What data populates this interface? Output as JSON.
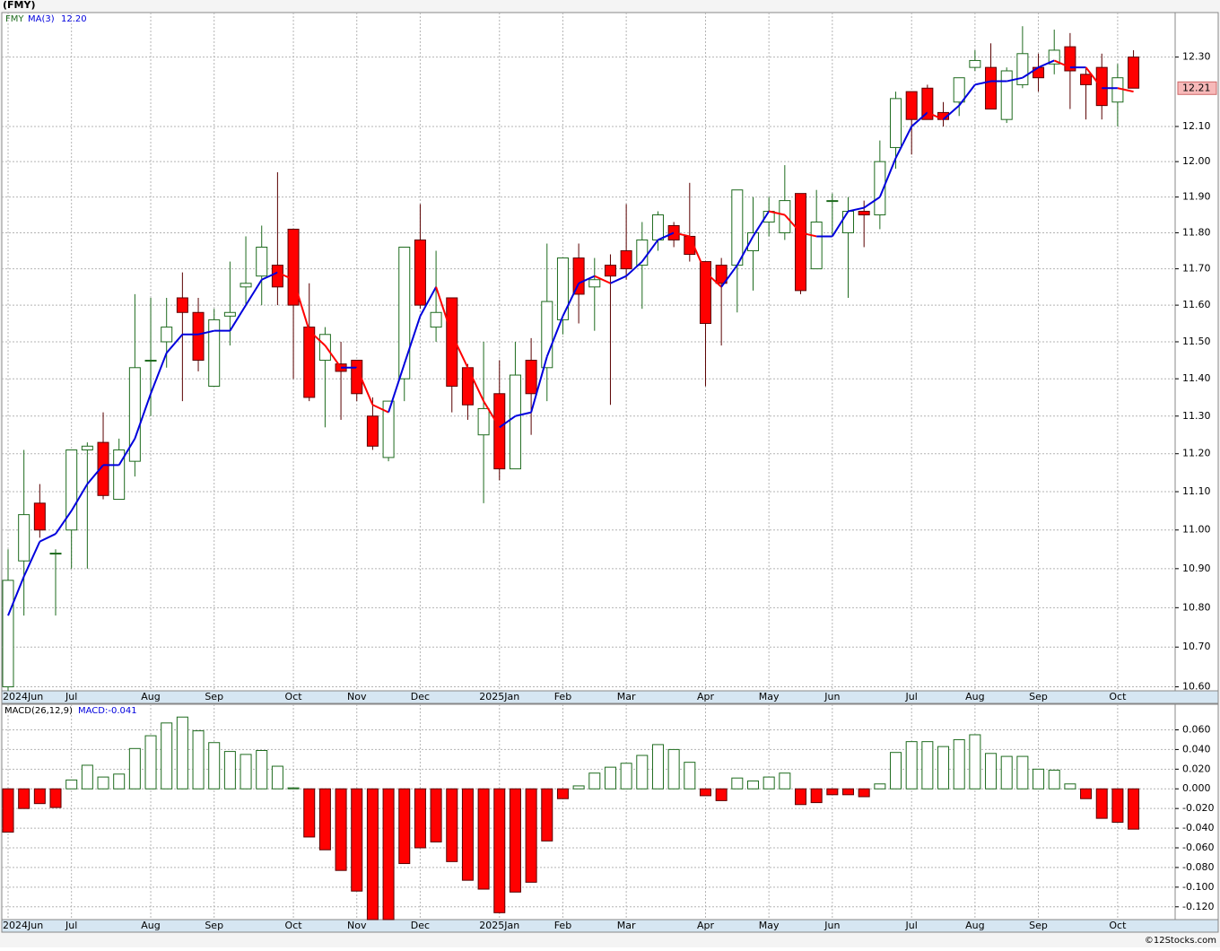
{
  "chart_data": [
    {
      "type": "candlestick",
      "title": "(FMY)",
      "symbol": "FMY",
      "categories": [
        "2024Jun",
        null,
        null,
        null,
        "Jul",
        null,
        null,
        null,
        null,
        "Aug",
        null,
        null,
        null,
        "Sep",
        null,
        null,
        null,
        null,
        "Oct",
        null,
        null,
        null,
        "Nov",
        null,
        null,
        null,
        "Dec",
        null,
        null,
        null,
        null,
        "2025Jan",
        null,
        null,
        null,
        "Feb",
        null,
        null,
        null,
        "Mar",
        null,
        null,
        null,
        null,
        "Apr",
        null,
        null,
        null,
        "May",
        null,
        null,
        null,
        "Jun",
        null,
        null,
        null,
        null,
        "Jul",
        null,
        null,
        null,
        "Aug",
        null,
        null,
        null,
        "Sep",
        null,
        null,
        null,
        null,
        "Oct",
        null
      ],
      "open": [
        10.6,
        10.92,
        11.07,
        10.94,
        11.0,
        11.21,
        11.23,
        11.08,
        11.18,
        11.45,
        11.5,
        11.62,
        11.58,
        11.38,
        11.57,
        11.65,
        11.68,
        11.71,
        11.81,
        11.54,
        11.45,
        11.44,
        11.45,
        11.3,
        11.19,
        11.4,
        11.78,
        11.54,
        11.62,
        11.43,
        11.25,
        11.36,
        11.16,
        11.45,
        11.43,
        11.56,
        11.73,
        11.65,
        11.71,
        11.75,
        11.71,
        11.78,
        11.82,
        11.79,
        11.72,
        11.71,
        11.71,
        11.75,
        11.83,
        11.8,
        11.91,
        11.7,
        11.89,
        11.8,
        11.86,
        11.85,
        12.04,
        12.2,
        12.21,
        12.14,
        12.17,
        12.27,
        12.27,
        12.12,
        12.22,
        12.27,
        12.28,
        12.33,
        12.25,
        12.27,
        12.17,
        12.3
      ],
      "high": [
        10.95,
        11.21,
        11.12,
        10.95,
        11.21,
        11.23,
        11.31,
        11.24,
        11.63,
        11.62,
        11.62,
        11.69,
        11.62,
        11.59,
        11.72,
        11.79,
        11.82,
        11.97,
        11.81,
        11.66,
        11.54,
        11.5,
        11.45,
        11.35,
        11.34,
        11.76,
        11.88,
        11.75,
        11.62,
        11.44,
        11.5,
        11.45,
        11.5,
        11.51,
        11.77,
        11.73,
        11.77,
        11.73,
        11.74,
        11.88,
        11.83,
        11.86,
        11.83,
        11.94,
        11.72,
        11.73,
        11.92,
        11.9,
        11.9,
        11.99,
        11.91,
        11.92,
        11.91,
        11.9,
        11.89,
        12.06,
        12.2,
        12.2,
        12.22,
        12.17,
        12.24,
        12.32,
        12.34,
        12.27,
        12.39,
        12.31,
        12.38,
        12.37,
        12.27,
        12.31,
        12.28,
        12.32
      ],
      "low": [
        10.59,
        10.78,
        10.98,
        10.78,
        10.9,
        10.9,
        11.08,
        11.08,
        11.14,
        11.3,
        11.43,
        11.34,
        11.42,
        11.38,
        11.49,
        11.6,
        11.6,
        11.6,
        11.4,
        11.34,
        11.27,
        11.29,
        11.34,
        11.21,
        11.18,
        11.34,
        11.59,
        11.5,
        11.31,
        11.29,
        11.07,
        11.13,
        11.16,
        11.25,
        11.34,
        11.52,
        11.55,
        11.53,
        11.33,
        11.67,
        11.59,
        11.75,
        11.76,
        11.72,
        11.38,
        11.49,
        11.58,
        11.64,
        11.79,
        11.78,
        11.63,
        11.7,
        11.79,
        11.62,
        11.76,
        11.81,
        11.98,
        12.02,
        12.12,
        12.1,
        12.13,
        12.26,
        12.15,
        12.11,
        12.21,
        12.2,
        12.25,
        12.15,
        12.12,
        12.12,
        12.1,
        12.21
      ],
      "close": [
        10.87,
        11.04,
        11.0,
        10.94,
        11.21,
        11.22,
        11.09,
        11.21,
        11.43,
        11.45,
        11.54,
        11.58,
        11.45,
        11.56,
        11.58,
        11.66,
        11.76,
        11.65,
        11.6,
        11.35,
        11.52,
        11.42,
        11.36,
        11.22,
        11.34,
        11.76,
        11.6,
        11.58,
        11.38,
        11.33,
        11.32,
        11.16,
        11.41,
        11.36,
        11.61,
        11.73,
        11.63,
        11.67,
        11.68,
        11.7,
        11.78,
        11.85,
        11.78,
        11.74,
        11.55,
        11.66,
        11.92,
        11.8,
        11.86,
        11.89,
        11.64,
        11.83,
        11.89,
        11.86,
        11.85,
        12.0,
        12.18,
        12.12,
        12.12,
        12.12,
        12.24,
        12.29,
        12.15,
        12.26,
        12.31,
        12.24,
        12.32,
        12.26,
        12.22,
        12.16,
        12.24,
        12.21
      ],
      "up_color": "#ffffff",
      "up_stroke": "#1e6b1e",
      "down_color": "#ff0000",
      "down_stroke": "#5a0000",
      "series": [
        {
          "name": "MA(3)",
          "value_label": "12.20",
          "color": "#0000dd",
          "down_color": "#ff0000",
          "values": [
            10.78,
            10.88,
            10.97,
            10.99,
            11.05,
            11.12,
            11.17,
            11.17,
            11.24,
            11.36,
            11.47,
            11.52,
            11.52,
            11.53,
            11.53,
            11.6,
            11.67,
            11.69,
            11.67,
            11.53,
            11.49,
            11.43,
            11.43,
            11.33,
            11.31,
            11.44,
            11.57,
            11.65,
            11.52,
            11.43,
            11.34,
            11.27,
            11.3,
            11.31,
            11.46,
            11.57,
            11.66,
            11.68,
            11.66,
            11.68,
            11.72,
            11.78,
            11.8,
            11.79,
            11.69,
            11.65,
            11.71,
            11.79,
            11.86,
            11.85,
            11.8,
            11.79,
            11.79,
            11.86,
            11.87,
            11.9,
            12.01,
            12.1,
            12.14,
            12.12,
            12.16,
            12.22,
            12.23,
            12.23,
            12.24,
            12.27,
            12.29,
            12.27,
            12.27,
            12.21,
            12.21,
            12.2
          ]
        }
      ],
      "last_price_label": "12.21",
      "ylim": [
        10.59,
        12.43
      ],
      "log_scale": true,
      "grid": true,
      "yticks": [
        {
          "value": 10.6,
          "label": "10.60"
        },
        {
          "value": 10.7,
          "label": "10.70"
        },
        {
          "value": 10.8,
          "label": "10.80"
        },
        {
          "value": 10.9,
          "label": "10.90"
        },
        {
          "value": 11.0,
          "label": "11.00"
        },
        {
          "value": 11.1,
          "label": "11.10"
        },
        {
          "value": 11.2,
          "label": "11.20"
        },
        {
          "value": 11.3,
          "label": "11.30"
        },
        {
          "value": 11.4,
          "label": "11.40"
        },
        {
          "value": 11.5,
          "label": "11.50"
        },
        {
          "value": 11.6,
          "label": "11.60"
        },
        {
          "value": 11.7,
          "label": "11.70"
        },
        {
          "value": 11.8,
          "label": "11.80"
        },
        {
          "value": 11.9,
          "label": "11.90"
        },
        {
          "value": 12.0,
          "label": "12.00"
        },
        {
          "value": 12.1,
          "label": "12.10"
        },
        {
          "value": 12.3,
          "label": "12.30"
        }
      ]
    },
    {
      "type": "bar",
      "title": "MACD(26,12,9)",
      "categories": [
        "2024Jun",
        null,
        null,
        null,
        "Jul",
        null,
        null,
        null,
        null,
        "Aug",
        null,
        null,
        null,
        "Sep",
        null,
        null,
        null,
        null,
        "Oct",
        null,
        null,
        null,
        "Nov",
        null,
        null,
        null,
        "Dec",
        null,
        null,
        null,
        null,
        "2025Jan",
        null,
        null,
        null,
        "Feb",
        null,
        null,
        null,
        "Mar",
        null,
        null,
        null,
        null,
        "Apr",
        null,
        null,
        null,
        "May",
        null,
        null,
        null,
        "Jun",
        null,
        null,
        null,
        null,
        "Jul",
        null,
        null,
        null,
        "Aug",
        null,
        null,
        null,
        "Sep",
        null,
        null,
        null,
        null,
        "Oct",
        null
      ],
      "series": [
        {
          "name": "MACD:-0.041",
          "color": "#ff0000",
          "up_color": "#ffffff",
          "up_stroke": "#1e6b1e",
          "down_stroke": "#5a0000",
          "values": [
            -0.044,
            -0.02,
            -0.015,
            -0.019,
            0.009,
            0.024,
            0.012,
            0.015,
            0.041,
            0.054,
            0.067,
            0.073,
            0.059,
            0.047,
            0.038,
            0.035,
            0.039,
            0.023,
            0.001,
            -0.049,
            -0.062,
            -0.083,
            -0.104,
            -0.133,
            -0.133,
            -0.076,
            -0.06,
            -0.054,
            -0.074,
            -0.093,
            -0.102,
            -0.126,
            -0.105,
            -0.095,
            -0.053,
            -0.01,
            0.003,
            0.016,
            0.022,
            0.026,
            0.034,
            0.045,
            0.04,
            0.027,
            -0.007,
            -0.012,
            0.011,
            0.008,
            0.012,
            0.016,
            -0.016,
            -0.014,
            -0.006,
            -0.006,
            -0.008,
            0.005,
            0.037,
            0.048,
            0.048,
            0.043,
            0.05,
            0.055,
            0.036,
            0.033,
            0.033,
            0.02,
            0.019,
            0.005,
            -0.01,
            -0.03,
            -0.034,
            -0.041
          ]
        }
      ],
      "ylim": [
        -0.133,
        0.086
      ],
      "grid": true,
      "yticks": [
        {
          "value": 0.06,
          "label": "0.060"
        },
        {
          "value": 0.04,
          "label": "0.040"
        },
        {
          "value": 0.02,
          "label": "0.020"
        },
        {
          "value": 0,
          "label": "0.000"
        },
        {
          "value": -0.02,
          "label": "-0.020"
        },
        {
          "value": -0.04,
          "label": "-0.040"
        },
        {
          "value": -0.06,
          "label": "-0.060"
        },
        {
          "value": -0.08,
          "label": "-0.080"
        },
        {
          "value": -0.1,
          "label": "-0.100"
        },
        {
          "value": -0.12,
          "label": "-0.120"
        }
      ]
    }
  ],
  "footer": "©12Stocks.com"
}
